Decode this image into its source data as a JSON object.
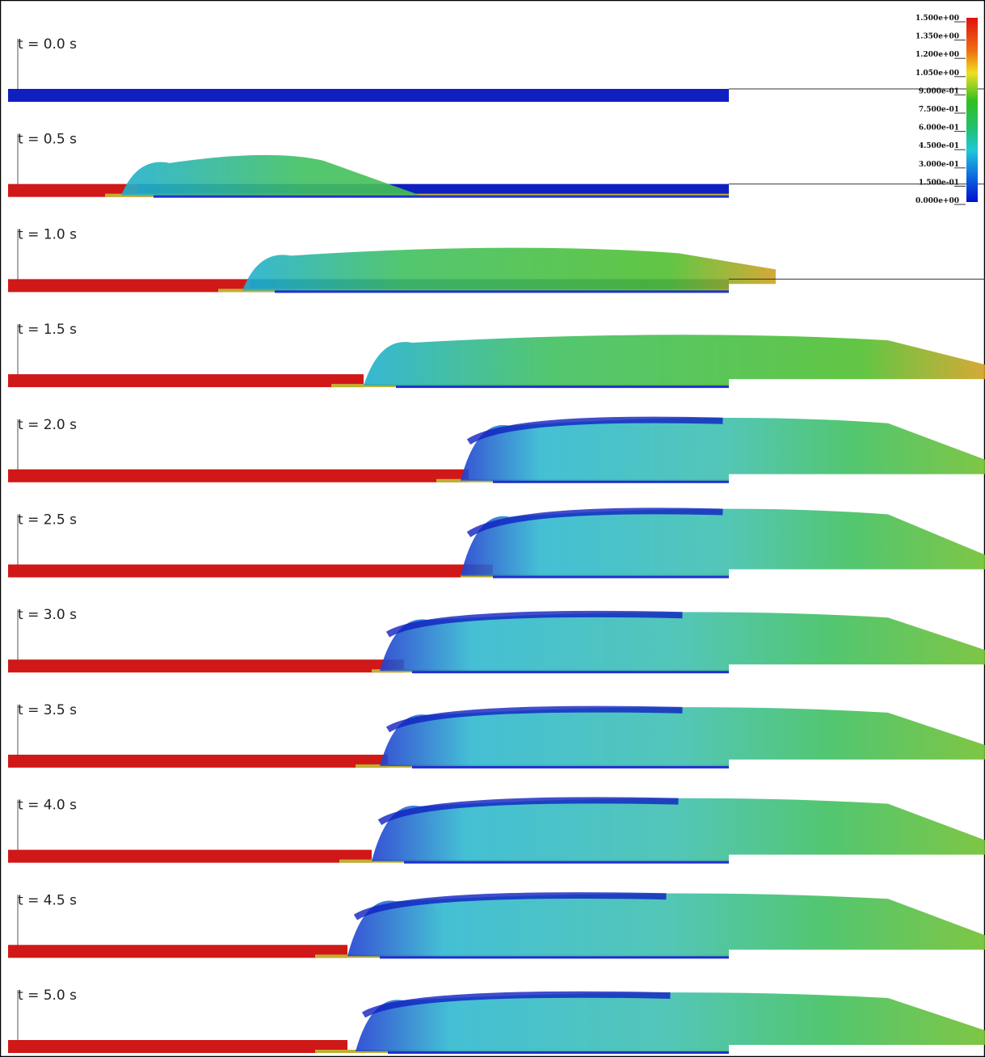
{
  "panels": [
    {
      "label": "t = 0.0 s"
    },
    {
      "label": "t = 0.5 s"
    },
    {
      "label": "t = 1.0 s"
    },
    {
      "label": "t = 1.5 s"
    },
    {
      "label": "t = 2.0 s"
    },
    {
      "label": "t = 2.5 s"
    },
    {
      "label": "t = 3.0 s"
    },
    {
      "label": "t = 3.5 s"
    },
    {
      "label": "t = 4.0 s"
    },
    {
      "label": "t = 4.5 s"
    },
    {
      "label": "t = 5.0 s"
    }
  ],
  "colorbar": {
    "labels": [
      "1.500e+00",
      "1.350e+00",
      "1.200e+00",
      "1.050e+00",
      "9.000e-01",
      "7.500e-01",
      "6.000e-01",
      "4.500e-01",
      "3.000e-01",
      "1.500e-01",
      "0.000e+00"
    ]
  }
}
